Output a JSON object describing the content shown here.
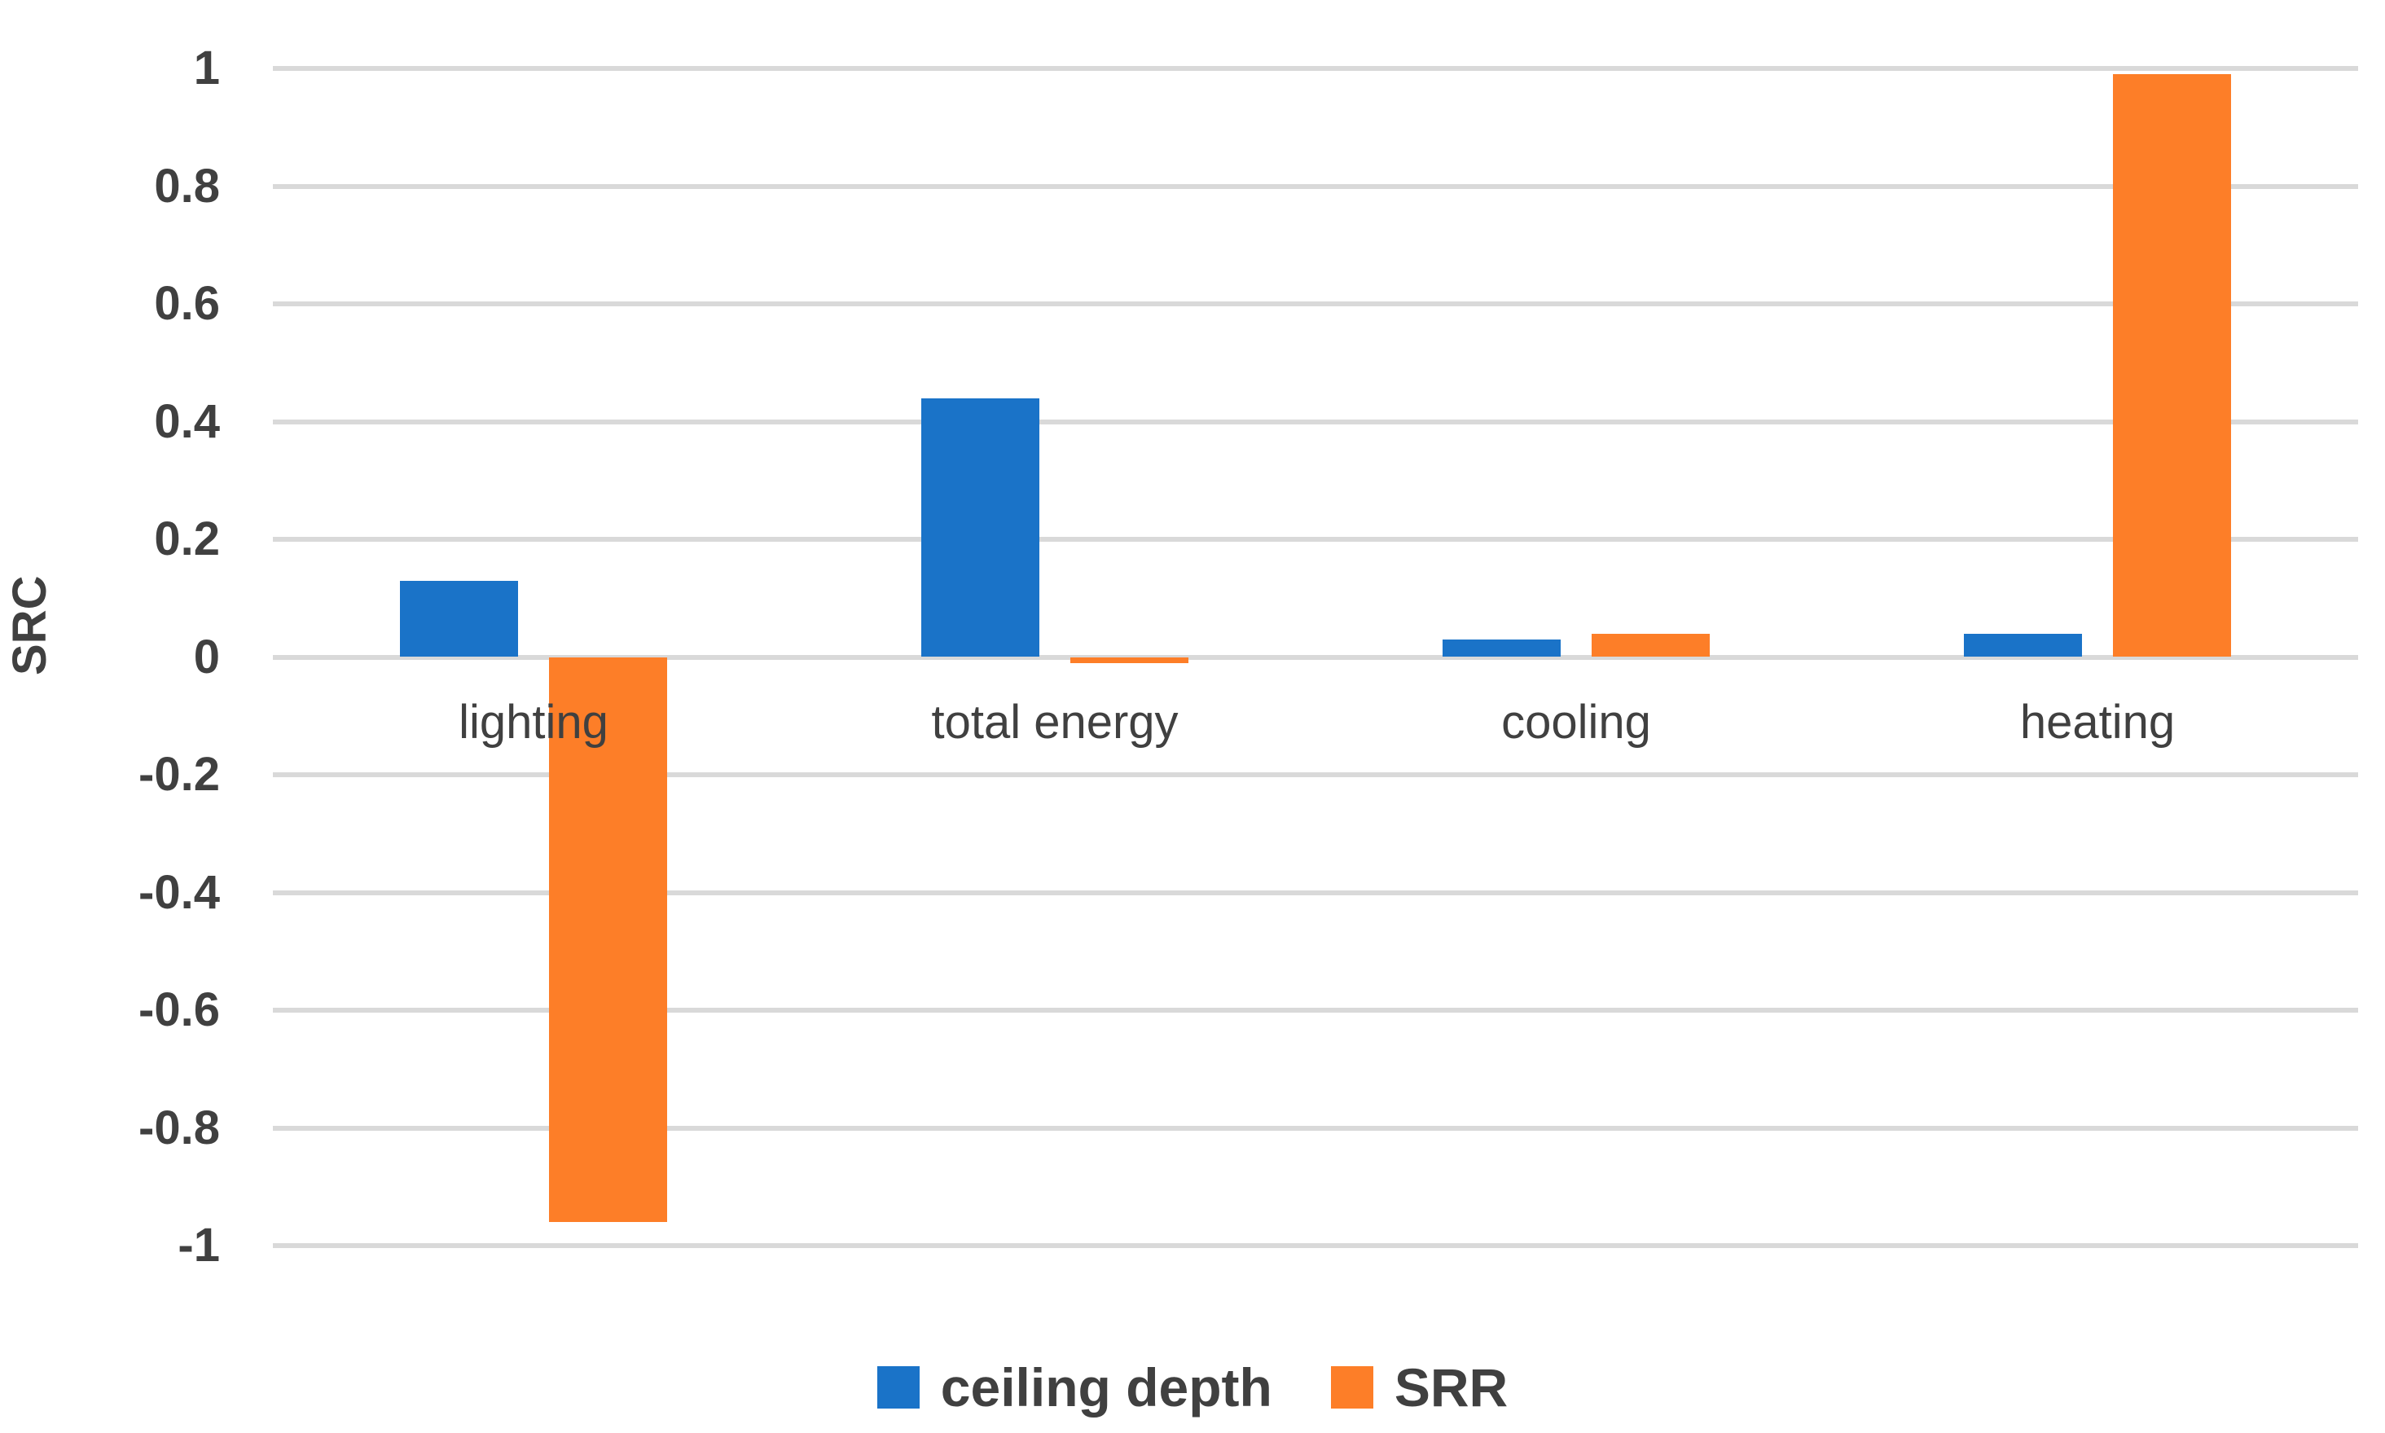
{
  "chart_data": {
    "type": "bar",
    "title": "",
    "xlabel": "",
    "ylabel": "SRC",
    "categories": [
      "lighting",
      "total energy",
      "cooling",
      "heating"
    ],
    "series": [
      {
        "name": "ceiling depth",
        "color": "#1A73C8",
        "values": [
          0.13,
          0.44,
          0.03,
          0.04
        ]
      },
      {
        "name": "SRR",
        "color": "#FD7E28",
        "values": [
          -0.96,
          -0.01,
          0.04,
          0.99
        ]
      }
    ],
    "ylim": [
      -1,
      1
    ],
    "y_ticks": [
      1,
      0.8,
      0.6,
      0.4,
      0.2,
      0,
      -0.2,
      -0.4,
      -0.6,
      -0.8,
      -1
    ],
    "y_tick_labels": [
      "1",
      "0.8",
      "0.6",
      "0.4",
      "0.2",
      "0",
      "-0.2",
      "-0.4",
      "-0.6",
      "-0.8",
      "-1"
    ],
    "grid": true,
    "gridline_color": "#D9D9D9",
    "text_color": "#404040",
    "background_color": "#FFFFFF",
    "legend_position": "bottom",
    "legend": [
      "ceiling depth",
      "SRR"
    ]
  }
}
